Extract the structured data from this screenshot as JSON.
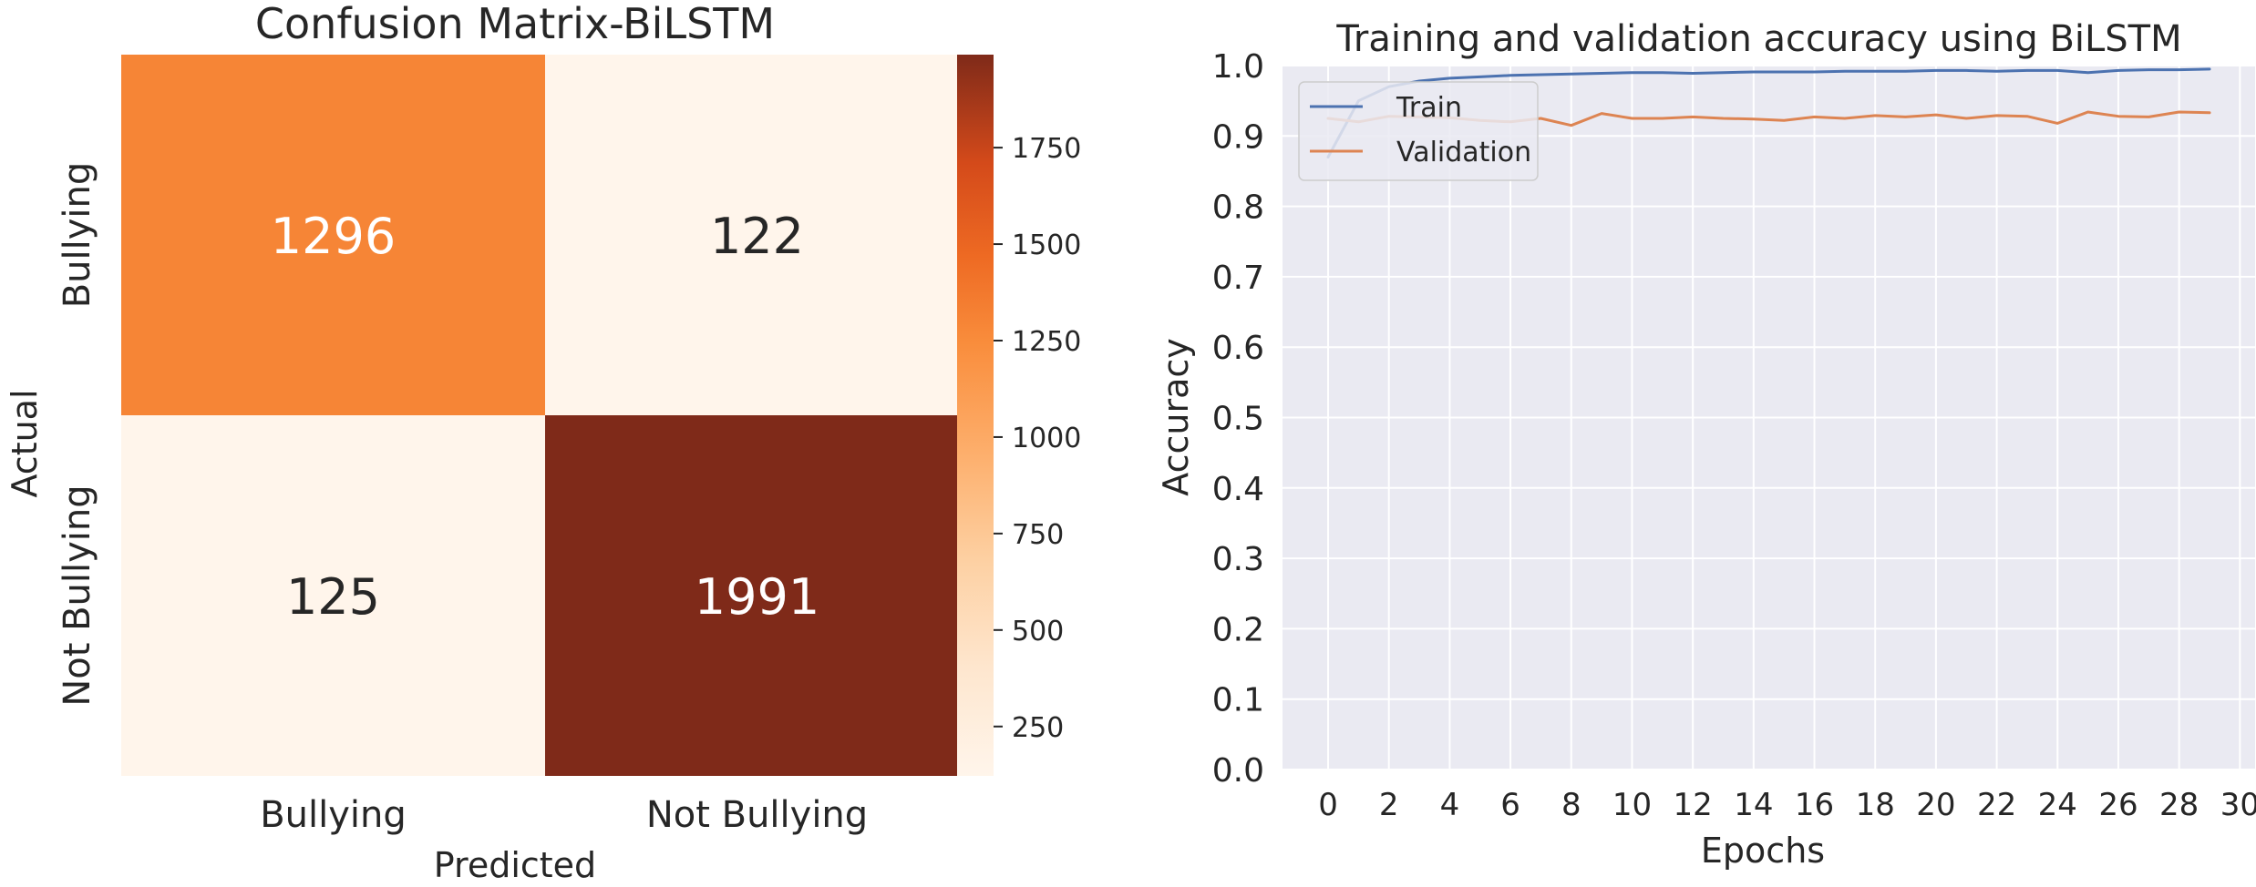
{
  "chart_data": [
    {
      "type": "heatmap",
      "title": "Confusion Matrix-BiLSTM",
      "xlabel": "Predicted",
      "ylabel": "Actual",
      "x_categories": [
        "Bullying",
        "Not Bullying"
      ],
      "y_categories": [
        "Bullying",
        "Not Bullying"
      ],
      "values": [
        [
          1296,
          122
        ],
        [
          125,
          1991
        ]
      ],
      "cell_labels": [
        [
          "1296",
          "122"
        ],
        [
          "125",
          "1991"
        ]
      ],
      "colormap": "Oranges",
      "colorbar": {
        "range": [
          122,
          1991
        ],
        "ticks": [
          250,
          500,
          750,
          1000,
          1250,
          1500,
          1750
        ],
        "tick_labels": [
          "250",
          "500",
          "750",
          "1000",
          "1250",
          "1500",
          "1750"
        ]
      },
      "colors": {
        "low": "#fff5eb",
        "high": "#7f2a19"
      }
    },
    {
      "type": "line",
      "title": "Training and validation accuracy using BiLSTM",
      "xlabel": "Epochs",
      "ylabel": "Accuracy",
      "xlim": [
        -1.5,
        30.5
      ],
      "ylim": [
        0.0,
        1.0
      ],
      "x_ticks": [
        0,
        2,
        4,
        6,
        8,
        10,
        12,
        14,
        16,
        18,
        20,
        22,
        24,
        26,
        28,
        30
      ],
      "x_tick_labels": [
        "0",
        "2",
        "4",
        "6",
        "8",
        "10",
        "12",
        "14",
        "16",
        "18",
        "20",
        "22",
        "24",
        "26",
        "28",
        "30"
      ],
      "y_ticks": [
        0.0,
        0.1,
        0.2,
        0.3,
        0.4,
        0.5,
        0.6,
        0.7,
        0.8,
        0.9,
        1.0
      ],
      "y_tick_labels": [
        "0.0",
        "0.1",
        "0.2",
        "0.3",
        "0.4",
        "0.5",
        "0.6",
        "0.7",
        "0.8",
        "0.9",
        "1.0"
      ],
      "grid": true,
      "legend_position": "top-left",
      "x": [
        0,
        1,
        2,
        3,
        4,
        5,
        6,
        7,
        8,
        9,
        10,
        11,
        12,
        13,
        14,
        15,
        16,
        17,
        18,
        19,
        20,
        21,
        22,
        23,
        24,
        25,
        26,
        27,
        28,
        29
      ],
      "series": [
        {
          "name": "Train",
          "color": "#4c72b0",
          "values": [
            0.87,
            0.95,
            0.97,
            0.978,
            0.982,
            0.984,
            0.986,
            0.987,
            0.988,
            0.989,
            0.99,
            0.99,
            0.989,
            0.99,
            0.991,
            0.991,
            0.991,
            0.992,
            0.992,
            0.992,
            0.993,
            0.993,
            0.992,
            0.993,
            0.993,
            0.99,
            0.993,
            0.994,
            0.994,
            0.995
          ]
        },
        {
          "name": "Validation",
          "color": "#dd8452",
          "values": [
            0.925,
            0.92,
            0.928,
            0.927,
            0.926,
            0.922,
            0.92,
            0.925,
            0.915,
            0.932,
            0.925,
            0.925,
            0.927,
            0.925,
            0.924,
            0.922,
            0.927,
            0.925,
            0.929,
            0.927,
            0.93,
            0.925,
            0.929,
            0.928,
            0.918,
            0.934,
            0.928,
            0.927,
            0.934,
            0.933
          ]
        }
      ]
    }
  ]
}
